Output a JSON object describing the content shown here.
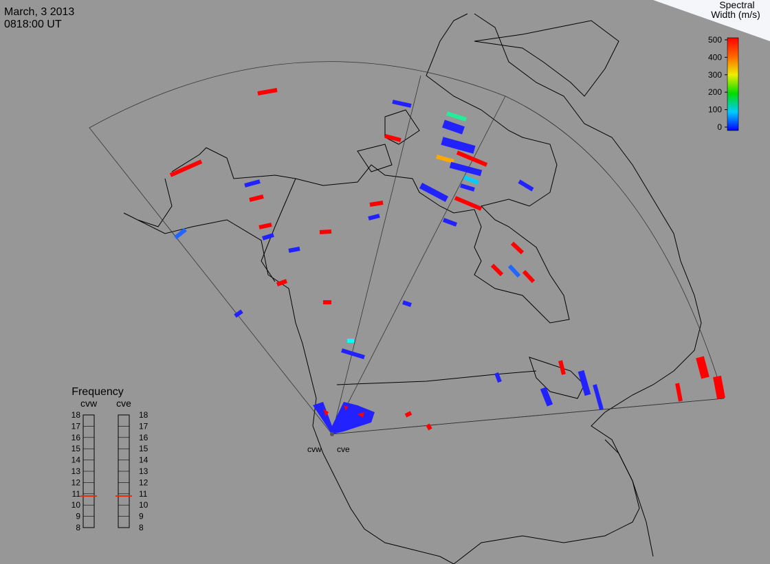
{
  "header": {
    "date": "March, 3 2013",
    "time": "0818:00 UT"
  },
  "colorbar": {
    "title_lines": [
      "Spectral",
      "Width (m/s)"
    ],
    "range": [
      0,
      500
    ],
    "ticks": [
      0,
      100,
      200,
      300,
      400,
      500
    ]
  },
  "frequency": {
    "title": "Frequency",
    "range": [
      8,
      18
    ],
    "ticks": [
      8,
      9,
      10,
      11,
      12,
      13,
      14,
      15,
      16,
      17,
      18
    ],
    "radars": [
      {
        "name": "cvw",
        "value": 10.8
      },
      {
        "name": "cve",
        "value": 10.8
      }
    ]
  },
  "sites": [
    "cvw",
    "cve"
  ]
}
